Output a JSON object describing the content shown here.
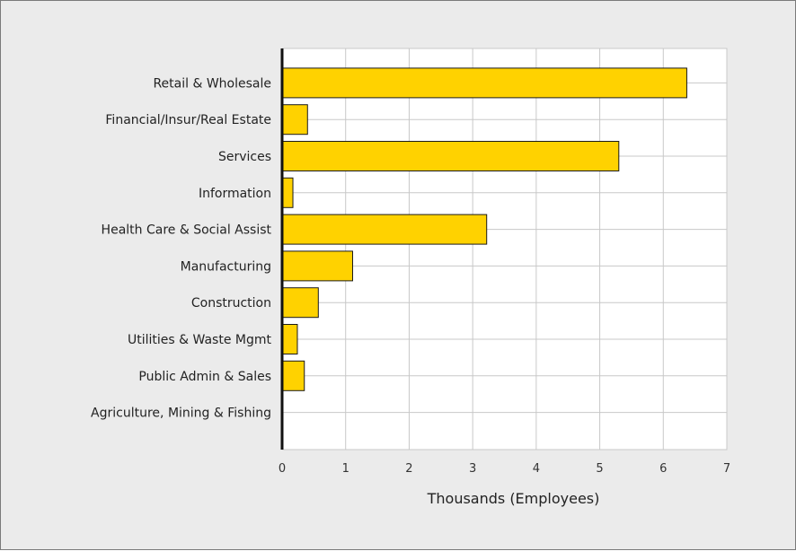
{
  "chart_data": {
    "type": "bar",
    "orientation": "horizontal",
    "title": "",
    "xlabel": "Thousands (Employees)",
    "ylabel": "",
    "xlim": [
      0,
      7
    ],
    "x_ticks": [
      0,
      1,
      2,
      3,
      4,
      5,
      6,
      7
    ],
    "grid": true,
    "legend": "none",
    "categories": [
      "Retail & Wholesale",
      "Financial/Insur/Real Estate",
      "Services",
      "Information",
      "Health Care & Social Assist",
      "Manufacturing",
      "Construction",
      "Utilities & Waste Mgmt",
      "Public Admin & Sales",
      "Agriculture, Mining & Fishing"
    ],
    "values": [
      6.37,
      0.4,
      5.3,
      0.17,
      3.22,
      1.11,
      0.57,
      0.24,
      0.35,
      0.0
    ],
    "colors": {
      "bar_fill": "#ffd200",
      "bar_stroke": "#1a1a1a",
      "plot_bg": "#ffffff",
      "frame_bg": "#ebebeb",
      "grid": "#c8c8c8"
    }
  }
}
